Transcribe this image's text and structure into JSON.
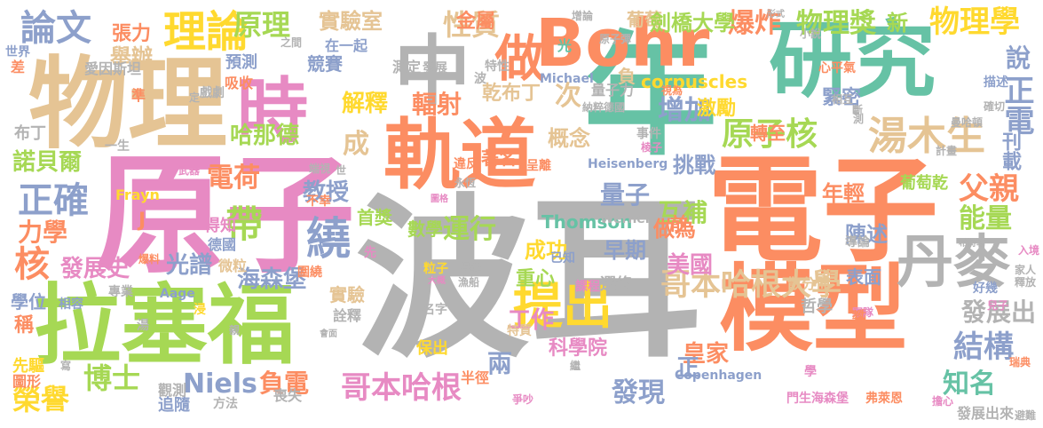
{
  "cloud": {
    "palette": {
      "green": "#66c2a5",
      "orange": "#fc8d62",
      "blue": "#8da0cb",
      "pink": "#e78ac3",
      "lime": "#a6d854",
      "yellow": "#ffd92f",
      "tan": "#e5c494",
      "gray": "#b3b3b3"
    },
    "words": [
      {
        "text": "波耳",
        "color": "gray"
      },
      {
        "text": "原子",
        "color": "pink"
      },
      {
        "text": "電子",
        "color": "orange"
      },
      {
        "text": "年",
        "color": "green"
      },
      {
        "text": "物理",
        "color": "tan"
      },
      {
        "text": "拉塞福",
        "color": "lime"
      },
      {
        "text": "模型",
        "color": "orange"
      },
      {
        "text": "研究",
        "color": "green"
      },
      {
        "text": "軌道",
        "color": "orange"
      },
      {
        "text": "Bohr",
        "color": "orange"
      },
      {
        "text": "中",
        "color": "gray"
      },
      {
        "text": "時",
        "color": "pink"
      },
      {
        "text": "丹麥",
        "color": "gray"
      },
      {
        "text": "做",
        "color": "orange"
      },
      {
        "text": "提出",
        "color": "yellow"
      },
      {
        "text": "理論",
        "color": "yellow"
      },
      {
        "text": "湯木生",
        "color": "tan"
      },
      {
        "text": "原子核",
        "color": "lime"
      },
      {
        "text": "哥本哈根大學",
        "color": "tan"
      },
      {
        "text": "哥本哈根",
        "color": "pink"
      },
      {
        "text": "繞",
        "color": "blue"
      },
      {
        "text": "帶",
        "color": "lime"
      },
      {
        "text": "論文",
        "color": "blue"
      },
      {
        "text": "原理",
        "color": "lime"
      },
      {
        "text": "實驗室",
        "color": "tan"
      },
      {
        "text": "性質",
        "color": "tan"
      },
      {
        "text": "爆炸",
        "color": "orange"
      },
      {
        "text": "物理獎",
        "color": "lime"
      },
      {
        "text": "新",
        "color": "lime"
      },
      {
        "text": "物理學",
        "color": "yellow"
      },
      {
        "text": "說",
        "color": "blue"
      },
      {
        "text": "正電",
        "color": "blue"
      },
      {
        "text": "刊載",
        "color": "blue"
      },
      {
        "text": "解釋",
        "color": "yellow"
      },
      {
        "text": "輻射",
        "color": "orange"
      },
      {
        "text": "增加",
        "color": "blue"
      },
      {
        "text": "次",
        "color": "tan"
      },
      {
        "text": "量子",
        "color": "blue"
      },
      {
        "text": "互補",
        "color": "lime"
      },
      {
        "text": "年輕",
        "color": "orange"
      },
      {
        "text": "父親",
        "color": "orange"
      },
      {
        "text": "能量",
        "color": "lime"
      },
      {
        "text": "運行",
        "color": "lime"
      },
      {
        "text": "陳述",
        "color": "blue"
      },
      {
        "text": "結構",
        "color": "blue"
      },
      {
        "text": "知名",
        "color": "green"
      },
      {
        "text": "發展出",
        "color": "gray"
      },
      {
        "text": "正確",
        "color": "blue"
      },
      {
        "text": "諾貝爾",
        "color": "lime"
      },
      {
        "text": "哈那德",
        "color": "lime"
      },
      {
        "text": "電荷",
        "color": "orange"
      },
      {
        "text": "教授",
        "color": "blue"
      },
      {
        "text": "核",
        "color": "orange"
      },
      {
        "text": "力學",
        "color": "orange"
      },
      {
        "text": "發展史",
        "color": "pink"
      },
      {
        "text": "光譜",
        "color": "blue"
      },
      {
        "text": "海森堡",
        "color": "blue"
      },
      {
        "text": "博士",
        "color": "lime"
      },
      {
        "text": "榮譽",
        "color": "yellow"
      },
      {
        "text": "Niels",
        "color": "blue"
      },
      {
        "text": "負電",
        "color": "orange"
      },
      {
        "text": "發現",
        "color": "blue"
      },
      {
        "text": "兩",
        "color": "blue"
      },
      {
        "text": "工作",
        "color": "pink"
      },
      {
        "text": "成",
        "color": "tan"
      },
      {
        "text": "概念",
        "color": "tan"
      },
      {
        "text": "挑戰",
        "color": "blue"
      },
      {
        "text": "做為",
        "color": "orange"
      },
      {
        "text": "美國",
        "color": "pink"
      },
      {
        "text": "成功",
        "color": "yellow"
      },
      {
        "text": "早期",
        "color": "blue"
      },
      {
        "text": "科學院",
        "color": "pink"
      },
      {
        "text": "皇家",
        "color": "orange"
      },
      {
        "text": "著名",
        "color": "orange"
      },
      {
        "text": "數學",
        "color": "lime"
      },
      {
        "text": "首獎",
        "color": "lime"
      },
      {
        "text": "Thomson",
        "color": "green"
      },
      {
        "text": "corpuscles",
        "color": "yellow"
      },
      {
        "text": "激勵",
        "color": "yellow"
      },
      {
        "text": "轉至",
        "color": "orange"
      },
      {
        "text": "緊密",
        "color": "blue"
      },
      {
        "text": "乾布丁",
        "color": "tan"
      },
      {
        "text": "金屬",
        "color": "orange"
      },
      {
        "text": "葡萄",
        "color": "tan"
      },
      {
        "text": "劍橋大學",
        "color": "lime"
      },
      {
        "text": "張力",
        "color": "orange"
      },
      {
        "text": "舉辦",
        "color": "tan"
      },
      {
        "text": "競賽",
        "color": "blue"
      },
      {
        "text": "表面",
        "color": "blue"
      },
      {
        "text": "哲學",
        "color": "gray"
      },
      {
        "text": "散分佈",
        "color": "tan"
      },
      {
        "text": "重心",
        "color": "lime"
      },
      {
        "text": "選修",
        "color": "gray"
      },
      {
        "text": "葡萄乾",
        "color": "lime"
      },
      {
        "text": "實驗",
        "color": "tan"
      },
      {
        "text": "詮釋",
        "color": "gray"
      },
      {
        "text": "光",
        "color": "green"
      },
      {
        "text": "負",
        "color": "tan"
      },
      {
        "text": "正",
        "color": "blue"
      },
      {
        "text": "量子力",
        "color": "gray"
      },
      {
        "text": "學位",
        "color": "blue"
      },
      {
        "text": "稱",
        "color": "orange"
      },
      {
        "text": "先驅",
        "color": "yellow"
      },
      {
        "text": "圖形",
        "color": "orange"
      },
      {
        "text": "得知",
        "color": "pink"
      },
      {
        "text": "德國",
        "color": "blue"
      },
      {
        "text": "微粒",
        "color": "tan"
      },
      {
        "text": "追隨",
        "color": "blue"
      },
      {
        "text": "觀測",
        "color": "gray"
      },
      {
        "text": "方法",
        "color": "gray"
      },
      {
        "text": "預測",
        "color": "blue"
      },
      {
        "text": "吸收",
        "color": "orange"
      },
      {
        "text": "戲劇",
        "color": "gray"
      },
      {
        "text": "世界",
        "color": "blue"
      },
      {
        "text": "愛因斯坦",
        "color": "gray"
      },
      {
        "text": "布丁",
        "color": "gray"
      },
      {
        "text": "一生",
        "color": "gray"
      },
      {
        "text": "專業",
        "color": "gray"
      },
      {
        "text": "名字",
        "color": "gray"
      },
      {
        "text": "特質",
        "color": "tan"
      },
      {
        "text": "保出",
        "color": "yellow"
      },
      {
        "text": "半徑",
        "color": "orange"
      },
      {
        "text": "事件",
        "color": "gray"
      },
      {
        "text": "呈離",
        "color": "orange"
      },
      {
        "text": "已知",
        "color": "blue"
      },
      {
        "text": "課程",
        "color": "pink"
      },
      {
        "text": "Heisenberg",
        "color": "blue"
      },
      {
        "text": "Werner",
        "color": "gray"
      },
      {
        "text": "Frayn",
        "color": "yellow"
      },
      {
        "text": "Aage",
        "color": "blue"
      },
      {
        "text": "Michael",
        "color": "blue"
      },
      {
        "text": "Copenhagen",
        "color": "blue"
      },
      {
        "text": "原子彈",
        "color": "gray"
      },
      {
        "text": "在一起",
        "color": "blue"
      },
      {
        "text": "之間",
        "color": "gray"
      },
      {
        "text": "測定",
        "color": "gray"
      },
      {
        "text": "發展",
        "color": "gray"
      },
      {
        "text": "特性",
        "color": "gray"
      },
      {
        "text": "納粹德國",
        "color": "gray"
      },
      {
        "text": "違反",
        "color": "orange"
      },
      {
        "text": "永恆",
        "color": "gray"
      },
      {
        "text": "不幸",
        "color": "orange"
      },
      {
        "text": "喪失",
        "color": "gray"
      },
      {
        "text": "門生海森堡",
        "color": "pink"
      },
      {
        "text": "弗萊恩",
        "color": "orange"
      },
      {
        "text": "擔心",
        "color": "pink"
      },
      {
        "text": "發展出來",
        "color": "gray"
      },
      {
        "text": "避難",
        "color": "gray"
      },
      {
        "text": "瑞典",
        "color": "orange"
      },
      {
        "text": "入境",
        "color": "pink"
      },
      {
        "text": "家人",
        "color": "gray"
      },
      {
        "text": "釋放",
        "color": "gray"
      },
      {
        "text": "兒子",
        "color": "pink"
      },
      {
        "text": "好幾",
        "color": "blue"
      },
      {
        "text": "軍隊",
        "color": "pink"
      },
      {
        "text": "導論",
        "color": "gray"
      },
      {
        "text": "希特勒",
        "color": "gray"
      },
      {
        "text": "曼哈頓",
        "color": "gray"
      },
      {
        "text": "計畫",
        "color": "gray"
      },
      {
        "text": "心平氣",
        "color": "orange"
      },
      {
        "text": "小說",
        "color": "gray"
      },
      {
        "text": "形式",
        "color": "gray"
      },
      {
        "text": "增論",
        "color": "gray"
      },
      {
        "text": "視為",
        "color": "orange"
      },
      {
        "text": "確切",
        "color": "gray"
      },
      {
        "text": "描述",
        "color": "blue"
      },
      {
        "text": "相互",
        "color": "gray"
      },
      {
        "text": "差",
        "color": "orange"
      },
      {
        "text": "準",
        "color": "orange"
      },
      {
        "text": "定",
        "color": "gray"
      },
      {
        "text": "浸",
        "color": "yellow"
      },
      {
        "text": "先",
        "color": "pink"
      },
      {
        "text": "測",
        "color": "gray"
      },
      {
        "text": "教",
        "color": "orange"
      },
      {
        "text": "學",
        "color": "pink"
      },
      {
        "text": "世",
        "color": "gray"
      },
      {
        "text": "粒子",
        "color": "yellow"
      },
      {
        "text": "漁船",
        "color": "gray"
      },
      {
        "text": "端視",
        "color": "gray"
      },
      {
        "text": "得獎",
        "color": "gray"
      },
      {
        "text": "爆料",
        "color": "orange"
      },
      {
        "text": "相容",
        "color": "blue"
      },
      {
        "text": "湯",
        "color": "gray"
      },
      {
        "text": "寫",
        "color": "gray"
      },
      {
        "text": "會面",
        "color": "gray"
      },
      {
        "text": "武器",
        "color": "pink"
      },
      {
        "text": "圍繞",
        "color": "orange"
      },
      {
        "text": "大概",
        "color": "pink"
      },
      {
        "text": "爭吵",
        "color": "pink"
      },
      {
        "text": "繼",
        "color": "gray"
      },
      {
        "text": "前",
        "color": "orange"
      },
      {
        "text": "親",
        "color": "gray"
      },
      {
        "text": "J",
        "color": "orange"
      },
      {
        "text": "波",
        "color": "gray"
      },
      {
        "text": "棱子",
        "color": "pink"
      },
      {
        "text": "斷",
        "color": "gray"
      },
      {
        "text": "圖格",
        "color": "pink"
      }
    ]
  }
}
